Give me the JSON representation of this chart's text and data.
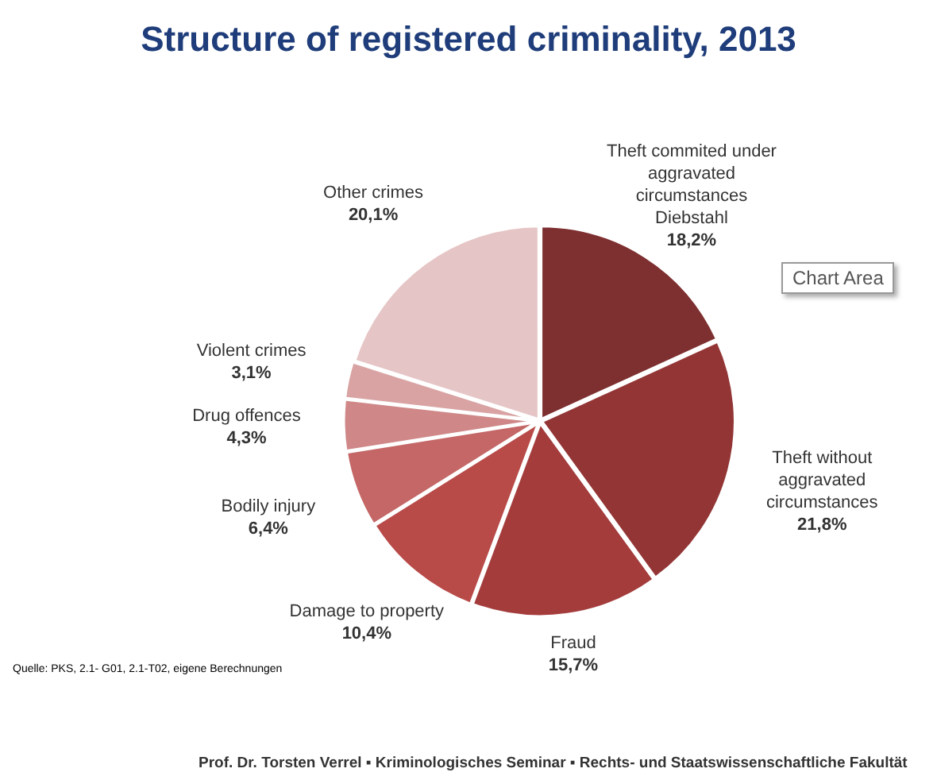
{
  "chart_data": {
    "type": "pie",
    "title": "Structure of registered criminality, 2013",
    "categories": [
      "Theft commited under aggravated circumstances Diebstahl",
      "Theft without aggravated circumstances",
      "Fraud",
      "Damage to property",
      "Bodily injury",
      "Drug offences",
      "Violent crimes",
      "Other crimes"
    ],
    "values": [
      18.2,
      21.8,
      15.7,
      10.4,
      6.4,
      4.3,
      3.1,
      20.1
    ],
    "value_labels": [
      "18,2%",
      "21,8%",
      "15,7%",
      "10,4%",
      "6,4%",
      "4,3%",
      "3,1%",
      "20,1%"
    ],
    "colors": [
      "#7e2f2f",
      "#933535",
      "#a43c3c",
      "#b84a48",
      "#c46766",
      "#cf8787",
      "#d9a3a3",
      "#e6c5c6"
    ],
    "legend": false,
    "annotations": [
      "Chart Area",
      "Quelle: PKS, 2.1- G01, 2.1-T02, eigene Berechnungen",
      "Prof. Dr. Torsten Verrel ▪ Kriminologisches Seminar ▪ Rechts- und Staatswissenschaftliche Fakultät"
    ]
  }
}
